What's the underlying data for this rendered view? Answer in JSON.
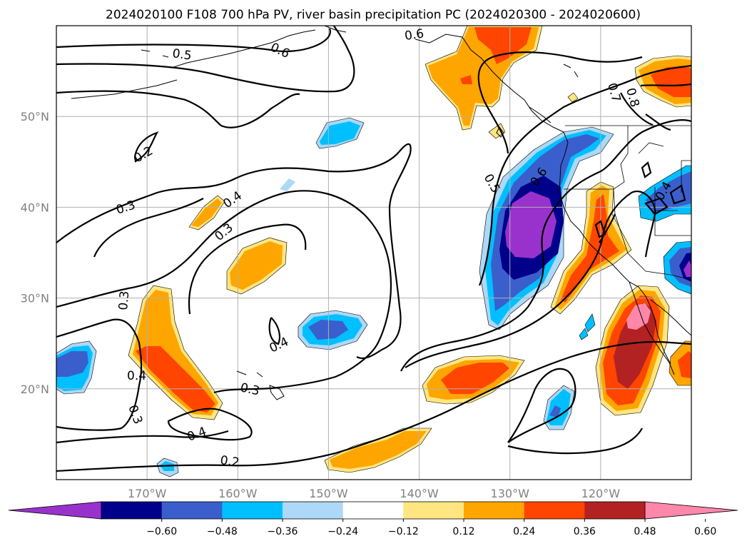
{
  "title": "2024020100 F108 700 hPa PV, river basin precipitation PC (2024020300 - 2024020600)",
  "map": {
    "lon_range": [
      -180,
      -110
    ],
    "lat_range": [
      10,
      60
    ],
    "lon_ticks": [
      {
        "value": -170,
        "label": "170°W"
      },
      {
        "value": -160,
        "label": "160°W"
      },
      {
        "value": -150,
        "label": "150°W"
      },
      {
        "value": -140,
        "label": "140°W"
      },
      {
        "value": -130,
        "label": "130°W"
      },
      {
        "value": -120,
        "label": "120°W"
      }
    ],
    "lat_ticks": [
      {
        "value": 50,
        "label": "50°N"
      },
      {
        "value": 40,
        "label": "40°N"
      },
      {
        "value": 30,
        "label": "30°N"
      },
      {
        "value": 20,
        "label": "20°N"
      }
    ],
    "contour_labels": [
      "0.5",
      "0.6",
      "0.6",
      "0.2",
      "0.3",
      "0.4",
      "0.3",
      "0.3",
      "0.4",
      "0.4",
      "0.3",
      "0.4",
      "0.2",
      "0.5",
      "0.6",
      "0.7",
      "0.8",
      "0.3",
      "0.4"
    ]
  },
  "colorbar": {
    "ticks": [
      "−0.60",
      "−0.48",
      "−0.36",
      "−0.24",
      "−0.12",
      "0.12",
      "0.24",
      "0.36",
      "0.48",
      "0.60"
    ],
    "colors": [
      "#9932CC",
      "#00008B",
      "#3A5FCD",
      "#00BFFF",
      "#ADD8F7",
      "#FFFFFF",
      "#FFE680",
      "#FFA500",
      "#FF4500",
      "#B22222",
      "#FF88AA"
    ]
  }
}
